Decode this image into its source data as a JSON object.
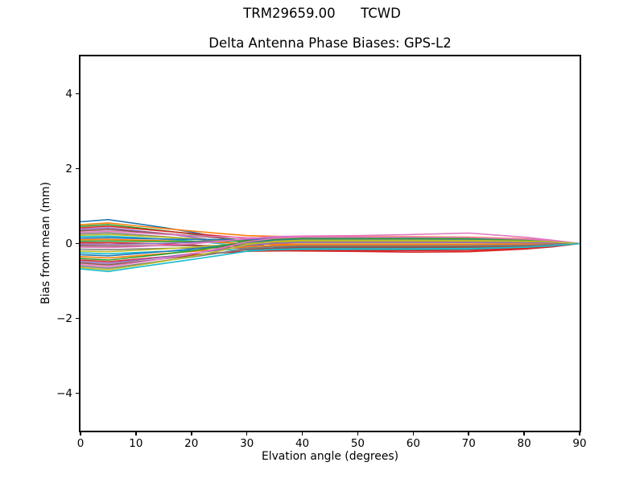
{
  "figure": {
    "background": "#ffffff",
    "text_color": "#000000"
  },
  "chart_data": {
    "type": "line",
    "suptitle": "TRM29659.00      TCWD",
    "title": "Delta Antenna Phase Biases: GPS-L2",
    "xlabel": "Elvation angle (degrees)",
    "ylabel": "Bias from mean (mm)",
    "xlim": [
      0,
      90
    ],
    "ylim": [
      -5,
      5
    ],
    "xticks": [
      0,
      10,
      20,
      30,
      40,
      50,
      60,
      70,
      80,
      90
    ],
    "yticks": [
      -4,
      -2,
      0,
      2,
      4
    ],
    "grid": false,
    "legend": false,
    "axis_color": "#000000",
    "line_width": 1.6,
    "x": [
      0,
      5,
      10,
      15,
      20,
      25,
      30,
      35,
      40,
      50,
      60,
      70,
      80,
      85,
      90
    ],
    "series": [
      {
        "color": "#1f77b4",
        "values": [
          0.58,
          0.638,
          0.533,
          0.426,
          0.306,
          0.166,
          -0.003,
          -0.091,
          -0.12,
          -0.12,
          -0.12,
          -0.114,
          -0.084,
          -0.054,
          0
        ]
      },
      {
        "color": "#ff7f0e",
        "values": [
          0.5,
          0.55,
          0.474,
          0.402,
          0.335,
          0.271,
          0.21,
          0.191,
          0.18,
          0.18,
          0.18,
          0.171,
          0.126,
          0.081,
          0
        ]
      },
      {
        "color": "#2ca02c",
        "values": [
          0.46,
          0.506,
          0.425,
          0.344,
          0.254,
          0.152,
          0.032,
          -0.029,
          -0.05,
          -0.05,
          -0.05,
          -0.048,
          -0.035,
          -0.023,
          0
        ]
      },
      {
        "color": "#d62728",
        "values": [
          0.42,
          0.462,
          0.396,
          0.331,
          0.269,
          0.205,
          0.138,
          0.112,
          0.1,
          0.1,
          0.1,
          0.095,
          0.07,
          0.045,
          0
        ]
      },
      {
        "color": "#9467bd",
        "values": [
          0.38,
          0.418,
          0.344,
          0.267,
          0.175,
          0.063,
          -0.078,
          -0.156,
          -0.18,
          -0.18,
          -0.18,
          -0.171,
          -0.126,
          -0.081,
          0
        ]
      },
      {
        "color": "#8c564b",
        "values": [
          0.34,
          0.374,
          0.319,
          0.264,
          0.21,
          0.152,
          0.089,
          0.061,
          0.05,
          0.05,
          0.05,
          0.048,
          0.035,
          0.023,
          0
        ]
      },
      {
        "color": "#e377c2",
        "values": [
          0.3,
          0.33,
          0.287,
          0.246,
          0.212,
          0.182,
          0.158,
          0.155,
          0.15,
          0.15,
          0.15,
          0.143,
          0.105,
          0.068,
          0
        ]
      },
      {
        "color": "#7f7f7f",
        "values": [
          0.26,
          0.286,
          0.237,
          0.186,
          0.126,
          0.054,
          -0.036,
          -0.085,
          -0.1,
          -0.1,
          -0.1,
          -0.095,
          -0.07,
          -0.045,
          0
        ]
      },
      {
        "color": "#bcbd22",
        "values": [
          0.22,
          0.242,
          0.206,
          0.17,
          0.133,
          0.093,
          0.048,
          0.028,
          0.02,
          0.02,
          0.02,
          0.019,
          0.014,
          0.009,
          0
        ]
      },
      {
        "color": "#17becf",
        "values": [
          0.18,
          0.198,
          0.16,
          0.119,
          0.067,
          0.001,
          -0.086,
          -0.135,
          -0.15,
          -0.15,
          -0.15,
          -0.143,
          -0.105,
          -0.068,
          0
        ]
      },
      {
        "color": "#1f77b4",
        "values": [
          0.14,
          0.154,
          0.136,
          0.121,
          0.111,
          0.107,
          0.111,
          0.12,
          0.12,
          0.12,
          0.12,
          0.114,
          0.084,
          0.054,
          0
        ]
      },
      {
        "color": "#ff7f0e",
        "values": [
          0.1,
          0.11,
          0.092,
          0.074,
          0.053,
          0.029,
          0,
          -0.015,
          -0.02,
          -0.02,
          -0.02,
          -0.019,
          -0.014,
          -0.009,
          0
        ]
      },
      {
        "color": "#2ca02c",
        "values": [
          0.06,
          0.066,
          0.06,
          0.055,
          0.055,
          0.059,
          0.069,
          0.078,
          0.08,
          0.08,
          0.08,
          0.076,
          0.056,
          0.036,
          0
        ]
      },
      {
        "color": "#d62728",
        "values": [
          0.02,
          0.022,
          0.009,
          -0.009,
          -0.038,
          -0.082,
          -0.147,
          -0.189,
          -0.2,
          -0.21,
          -0.23,
          -0.22,
          -0.15,
          -0.09,
          0
        ]
      },
      {
        "color": "#9467bd",
        "values": [
          -0.02,
          -0.022,
          -0.011,
          0.004,
          0.028,
          0.064,
          0.117,
          0.151,
          0.16,
          0.16,
          0.16,
          0.152,
          0.112,
          0.072,
          0
        ]
      },
      {
        "color": "#8c564b",
        "values": [
          -0.06,
          -0.066,
          -0.06,
          -0.055,
          -0.055,
          -0.059,
          -0.069,
          -0.078,
          -0.08,
          -0.08,
          -0.08,
          -0.076,
          -0.056,
          -0.036,
          0
        ]
      },
      {
        "color": "#e377c2",
        "values": [
          -0.1,
          -0.11,
          -0.083,
          -0.052,
          -0.008,
          0.052,
          0.135,
          0.186,
          0.2,
          0.21,
          0.24,
          0.28,
          0.17,
          0.09,
          0
        ]
      },
      {
        "color": "#7f7f7f",
        "values": [
          -0.15,
          -0.165,
          -0.146,
          -0.13,
          -0.12,
          -0.116,
          -0.12,
          -0.13,
          -0.13,
          -0.13,
          -0.13,
          -0.124,
          -0.091,
          -0.059,
          0
        ]
      },
      {
        "color": "#bcbd22",
        "values": [
          -0.2,
          -0.22,
          -0.183,
          -0.145,
          -0.101,
          -0.049,
          0.015,
          0.049,
          0.06,
          0.06,
          0.06,
          0.057,
          0.042,
          0.027,
          0
        ]
      },
      {
        "color": "#17becf",
        "values": [
          -0.25,
          -0.275,
          -0.241,
          -0.21,
          -0.188,
          -0.172,
          -0.165,
          -0.172,
          -0.17,
          -0.17,
          -0.17,
          -0.162,
          -0.119,
          -0.077,
          0
        ]
      },
      {
        "color": "#1f77b4",
        "values": [
          -0.3,
          -0.33,
          -0.274,
          -0.216,
          -0.149,
          -0.069,
          0.03,
          0.083,
          0.1,
          0.1,
          0.1,
          0.095,
          0.07,
          0.045,
          0
        ]
      },
      {
        "color": "#ff7f0e",
        "values": [
          -0.35,
          -0.385,
          -0.328,
          -0.271,
          -0.213,
          -0.151,
          -0.083,
          -0.052,
          -0.04,
          -0.04,
          -0.04,
          -0.038,
          -0.028,
          -0.018,
          0
        ]
      },
      {
        "color": "#2ca02c",
        "values": [
          -0.4,
          -0.44,
          -0.365,
          -0.287,
          -0.197,
          -0.089,
          0.045,
          0.117,
          0.14,
          0.14,
          0.14,
          0.133,
          0.098,
          0.063,
          0
        ]
      },
      {
        "color": "#d62728",
        "values": [
          -0.44,
          -0.484,
          -0.419,
          -0.357,
          -0.303,
          -0.253,
          -0.209,
          -0.198,
          -0.19,
          -0.19,
          -0.19,
          -0.181,
          -0.133,
          -0.086,
          0
        ]
      },
      {
        "color": "#9467bd",
        "values": [
          -0.48,
          -0.528,
          -0.445,
          -0.361,
          -0.271,
          -0.169,
          -0.05,
          0.009,
          0.03,
          0.03,
          0.03,
          0.029,
          0.021,
          0.014,
          0
        ]
      },
      {
        "color": "#8c564b",
        "values": [
          -0.52,
          -0.572,
          -0.489,
          -0.408,
          -0.329,
          -0.247,
          -0.161,
          -0.125,
          -0.11,
          -0.11,
          -0.11,
          -0.105,
          -0.077,
          -0.05,
          0
        ]
      },
      {
        "color": "#e377c2",
        "values": [
          -0.56,
          -0.616,
          -0.512,
          -0.405,
          -0.282,
          -0.136,
          0.044,
          0.139,
          0.17,
          0.17,
          0.17,
          0.162,
          0.119,
          0.077,
          0
        ]
      },
      {
        "color": "#7f7f7f",
        "values": [
          -0.6,
          -0.66,
          -0.561,
          -0.463,
          -0.363,
          -0.255,
          -0.135,
          -0.081,
          -0.06,
          -0.06,
          -0.06,
          -0.057,
          -0.042,
          -0.027,
          0
        ]
      },
      {
        "color": "#bcbd22",
        "values": [
          -0.64,
          -0.704,
          -0.591,
          -0.476,
          -0.349,
          -0.203,
          -0.029,
          0.06,
          0.09,
          0.09,
          0.09,
          0.086,
          0.063,
          0.041,
          0
        ]
      },
      {
        "color": "#17becf",
        "values": [
          -0.68,
          -0.748,
          -0.639,
          -0.534,
          -0.429,
          -0.321,
          -0.207,
          -0.16,
          -0.14,
          -0.14,
          -0.14,
          -0.133,
          -0.098,
          -0.063,
          0
        ]
      }
    ]
  }
}
